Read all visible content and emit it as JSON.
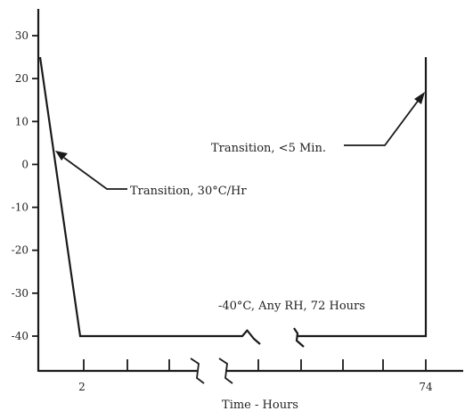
{
  "chart_data": {
    "type": "line",
    "xlabel": "Time - Hours",
    "ylabel": "",
    "ylim": [
      -50,
      35
    ],
    "y_ticks": [
      30,
      20,
      10,
      0,
      -10,
      -20,
      -30,
      -40
    ],
    "x_tick_labels": [
      {
        "x": 2,
        "label": "2"
      },
      {
        "x": 74,
        "label": "74"
      }
    ],
    "grid": false,
    "legend": "none",
    "axis_break": true,
    "series": [
      {
        "x": [
          0,
          2,
          74,
          74
        ],
        "y": [
          25,
          -40,
          -40,
          25
        ]
      }
    ],
    "annotations": [
      {
        "text": "Transition, 30°C/Hr",
        "points_to": {
          "x": 0.4,
          "y": 2
        }
      },
      {
        "text": "Transition, <5 Min.",
        "points_to": {
          "x": 74,
          "y": 17
        }
      },
      {
        "text": "-40°C, Any RH, 72 Hours",
        "points_to": null
      }
    ]
  }
}
